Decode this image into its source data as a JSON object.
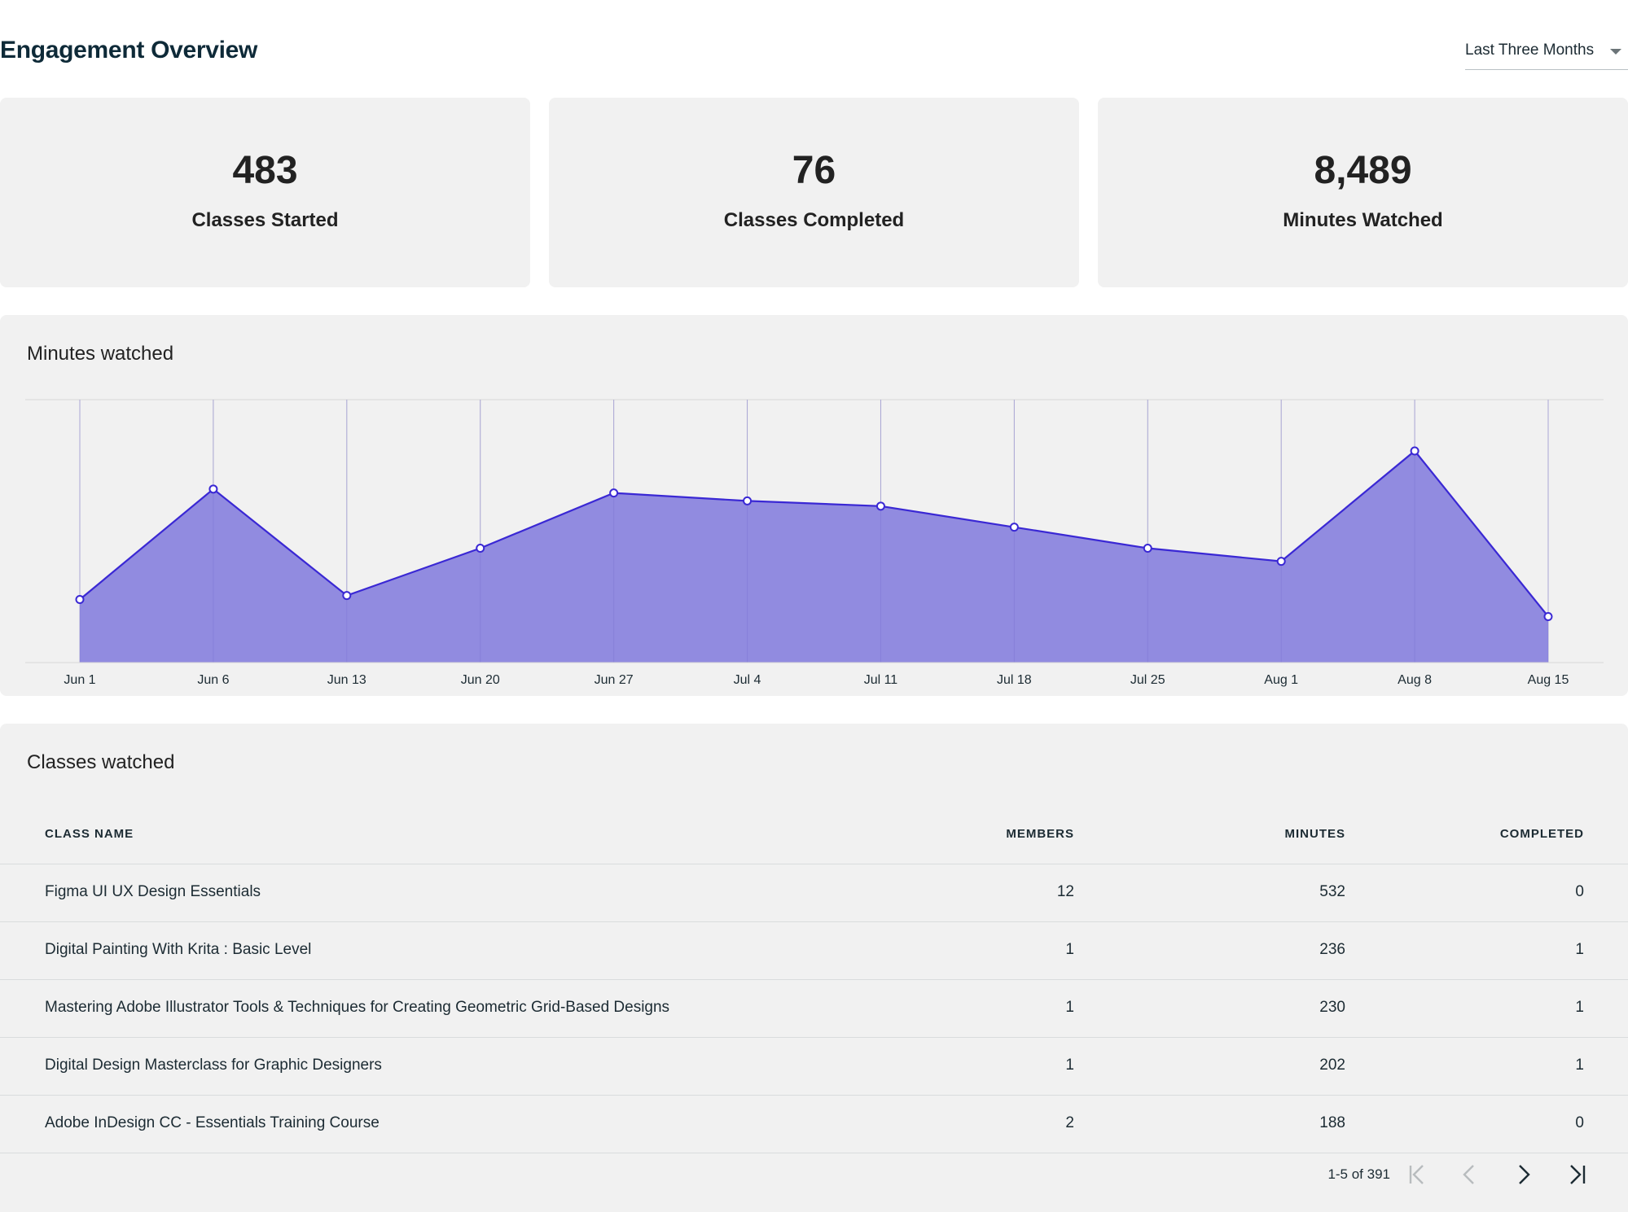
{
  "header": {
    "title": "Engagement Overview",
    "range_select": {
      "value": "Last Three Months"
    }
  },
  "stats": [
    {
      "value": "483",
      "label": "Classes Started"
    },
    {
      "value": "76",
      "label": "Classes Completed"
    },
    {
      "value": "8,489",
      "label": "Minutes Watched"
    }
  ],
  "chart_panel": {
    "title": "Minutes watched"
  },
  "chart_data": {
    "type": "area",
    "title": "Minutes watched",
    "categories": [
      "Jun 1",
      "Jun 6",
      "Jun 13",
      "Jun 20",
      "Jun 27",
      "Jul 4",
      "Jul 11",
      "Jul 18",
      "Jul 25",
      "Aug 1",
      "Aug 8",
      "Aug 15"
    ],
    "series": [
      {
        "values": [
          240,
          660,
          255,
          435,
          645,
          615,
          595,
          515,
          435,
          385,
          805,
          175
        ]
      }
    ],
    "ylim": [
      0,
      1000
    ],
    "grid": "vertical",
    "colors": {
      "line": "#3a28d4",
      "fill": "#8f89df",
      "grid": "#d6d6d6"
    }
  },
  "table": {
    "title": "Classes watched",
    "columns": [
      "CLASS NAME",
      "MEMBERS",
      "MINUTES",
      "COMPLETED"
    ],
    "rows": [
      {
        "name": "Figma UI UX Design Essentials",
        "members": "12",
        "minutes": "532",
        "completed": "0"
      },
      {
        "name": "Digital Painting With Krita : Basic Level",
        "members": "1",
        "minutes": "236",
        "completed": "1"
      },
      {
        "name": "Mastering Adobe Illustrator Tools & Techniques for Creating Geometric Grid-Based Designs",
        "members": "1",
        "minutes": "230",
        "completed": "1"
      },
      {
        "name": "Digital Design Masterclass for Graphic Designers",
        "members": "1",
        "minutes": "202",
        "completed": "1"
      },
      {
        "name": "Adobe InDesign CC - Essentials Training Course",
        "members": "2",
        "minutes": "188",
        "completed": "0"
      }
    ]
  },
  "pagination": {
    "range": "1-5 of 391",
    "icons": [
      "first-page-icon",
      "previous-page-icon",
      "next-page-icon",
      "last-page-icon"
    ]
  }
}
